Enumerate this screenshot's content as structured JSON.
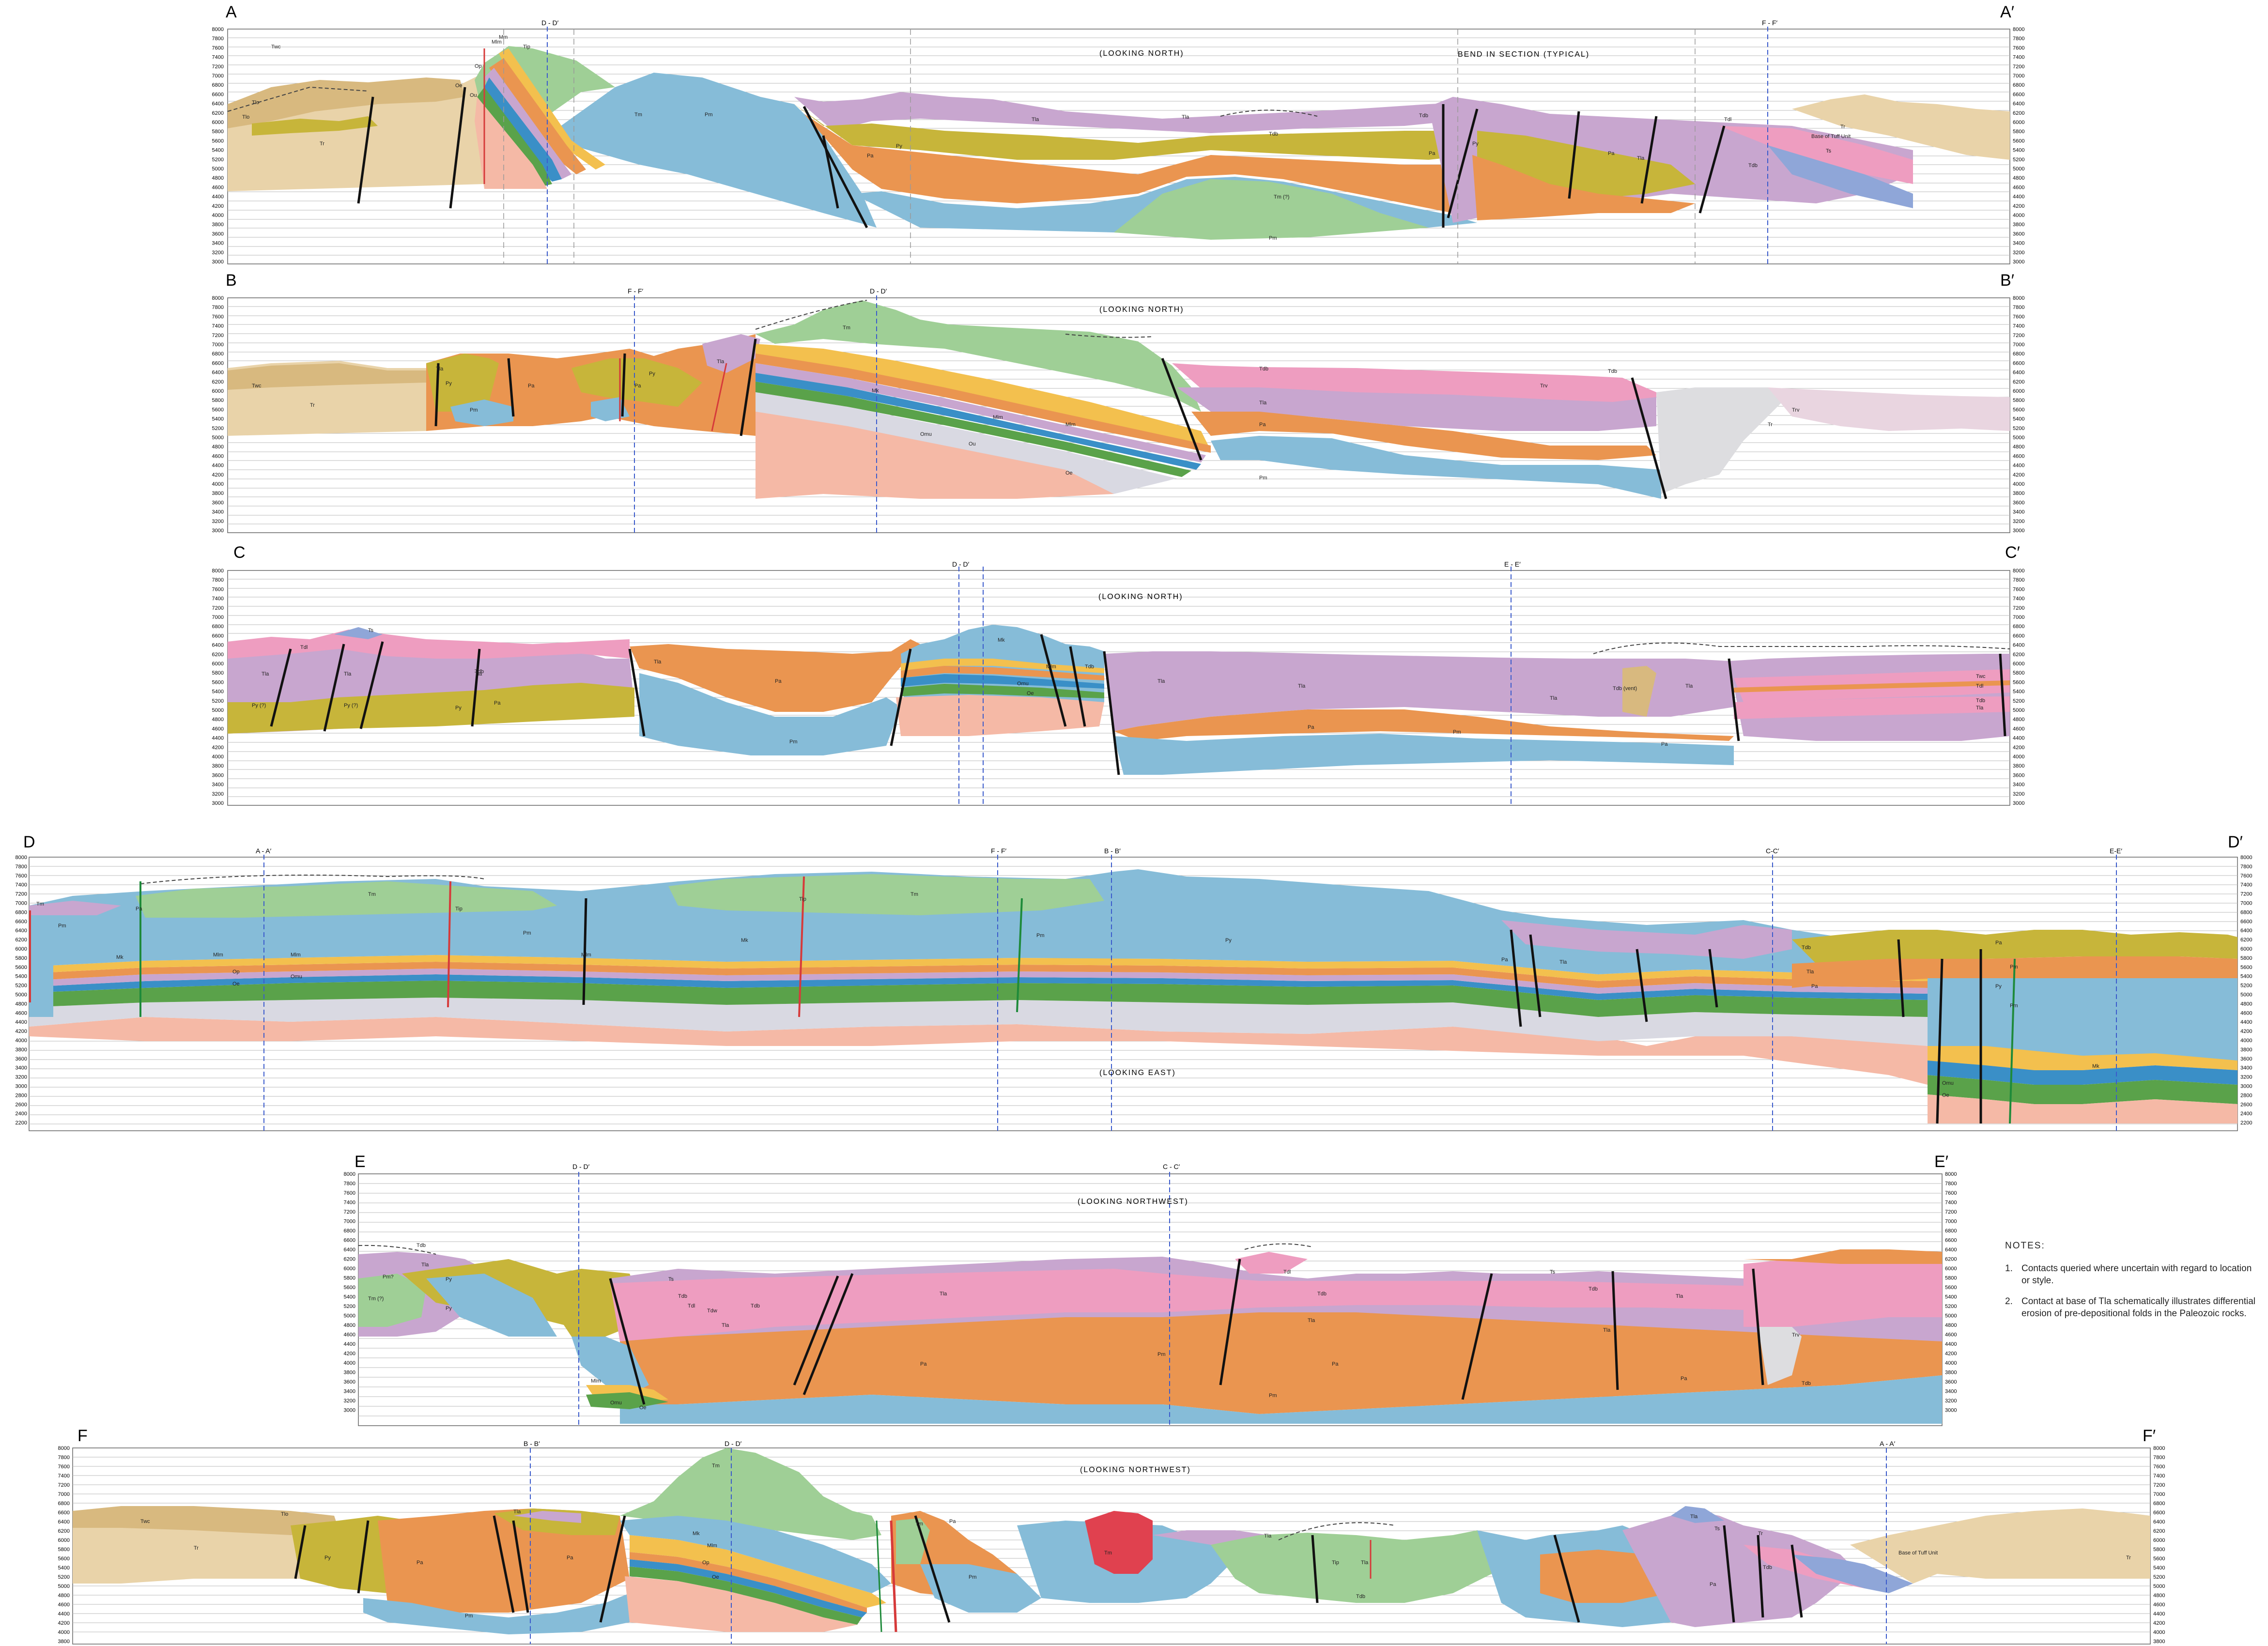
{
  "sections": [
    {
      "id": "A",
      "start": "A",
      "end": "A′",
      "look": "(LOOKING NORTH)",
      "callout": "BEND IN SECTION (TYPICAL)",
      "ticks": [
        "8000",
        "7800",
        "7600",
        "7400",
        "7200",
        "7000",
        "6800",
        "6600",
        "6400",
        "6200",
        "6000",
        "5800",
        "5600",
        "5400",
        "5200",
        "5000",
        "4800",
        "4600",
        "4400",
        "4200",
        "4000",
        "3800",
        "3600",
        "3400",
        "3200",
        "3000"
      ],
      "refs": [
        "D - D′",
        "F - F′"
      ],
      "units": [
        "Twc",
        "Tlo",
        "Tlo",
        "Tr",
        "Tm",
        "Pm",
        "Pa",
        "Py",
        "Tla",
        "Tla",
        "Tdb",
        "Tdb",
        "Py",
        "Pa",
        "Pa",
        "Tla",
        "Tdb",
        "Tr",
        "Ts",
        "Tm (?)",
        "Pm",
        "Tdl",
        "Base of Tuff Unit",
        "Mm",
        "Mlm",
        "Op",
        "Ou",
        "Oe",
        "Tip"
      ]
    },
    {
      "id": "B",
      "start": "B",
      "end": "B′",
      "look": "(LOOKING NORTH)",
      "ticks": [
        "8000",
        "7800",
        "7600",
        "7400",
        "7200",
        "7000",
        "6800",
        "6600",
        "6400",
        "6200",
        "6000",
        "5800",
        "5600",
        "5400",
        "5200",
        "5000",
        "4800",
        "4600",
        "4400",
        "4200",
        "4000",
        "3800",
        "3600",
        "3400",
        "3200",
        "3000"
      ],
      "refs": [
        "F - F′",
        "D - D′"
      ],
      "units": [
        "Twc",
        "Tr",
        "Tla",
        "Py",
        "Pa",
        "Pm",
        "Pa",
        "Py",
        "Tla",
        "Tm",
        "Mk",
        "Mlm",
        "Mlm",
        "Omu",
        "Ou",
        "Oe",
        "Tdb",
        "Tla",
        "Pa",
        "Pm",
        "Trv",
        "Tdb",
        "Tr",
        "Trv"
      ]
    },
    {
      "id": "C",
      "start": "C",
      "end": "C′",
      "look": "(LOOKING NORTH)",
      "ticks": [
        "8000",
        "7800",
        "7600",
        "7400",
        "7200",
        "7000",
        "6800",
        "6600",
        "6400",
        "6200",
        "6000",
        "5800",
        "5600",
        "5400",
        "5200",
        "5000",
        "4800",
        "4600",
        "4400",
        "4200",
        "4000",
        "3800",
        "3600",
        "3400",
        "3200",
        "3000"
      ],
      "refs": [
        "D - D′",
        "E - E′"
      ],
      "units": [
        "Tdl",
        "Ts",
        "Tdb",
        "Tla",
        "Tla",
        "Tla",
        "Py (?)",
        "Py (?)",
        "Py",
        "Pa",
        "Tla",
        "Pa",
        "Pm",
        "Mk",
        "Mlm",
        "Omu",
        "Oe",
        "Tdb",
        "Tla",
        "Tla",
        "Pa",
        "Pm",
        "Tla",
        "Tdb (vent)",
        "Tla",
        "Pa",
        "Twc",
        "Tdl",
        "Tdb",
        "Tla"
      ]
    },
    {
      "id": "D",
      "start": "D",
      "end": "D′",
      "look": "(LOOKING EAST)",
      "ticks": [
        "8000",
        "7800",
        "7600",
        "7400",
        "7200",
        "7000",
        "6800",
        "6600",
        "6400",
        "6200",
        "6000",
        "5800",
        "5600",
        "5400",
        "5200",
        "5000",
        "4800",
        "4600",
        "4400",
        "4200",
        "4000",
        "3800",
        "3600",
        "3400",
        "3200",
        "3000",
        "2800",
        "2600",
        "2400",
        "2200"
      ],
      "refs": [
        "A - A′",
        "F - F′",
        "B - B′",
        "C-C′",
        "E-E′"
      ],
      "units": [
        "Tm",
        "Pm",
        "Pa",
        "Mk",
        "Mlm",
        "Mlm",
        "Op",
        "Omu",
        "Oe",
        "Tip",
        "Tm",
        "Pm",
        "Tip",
        "Tm",
        "Mk",
        "Mlm",
        "Pm",
        "Py",
        "Pa",
        "Tla",
        "Tdb",
        "Pa",
        "Pm",
        "Py",
        "Tla",
        "Pa",
        "Pm",
        "Mk",
        "Omu",
        "Oe"
      ]
    },
    {
      "id": "E",
      "start": "E",
      "end": "E′",
      "look": "(LOOKING NORTHWEST)",
      "ticks": [
        "8000",
        "7800",
        "7600",
        "7400",
        "7200",
        "7000",
        "6800",
        "6600",
        "6400",
        "6200",
        "6000",
        "5800",
        "5600",
        "5400",
        "5200",
        "5000",
        "4800",
        "4600",
        "4400",
        "4200",
        "4000",
        "3800",
        "3600",
        "3400",
        "3200",
        "3000"
      ],
      "refs": [
        "D - D′",
        "C - C′"
      ],
      "units": [
        "Tdb",
        "Tla",
        "Pm?",
        "Tm (?)",
        "Py",
        "Py",
        "Ts",
        "Tdb",
        "Tdl",
        "Tdw",
        "Tla",
        "Tdb",
        "Tla",
        "Pa",
        "Pm",
        "Tdl",
        "Tdb",
        "Tla",
        "Pa",
        "Pm",
        "Ts",
        "Tdb",
        "Tla",
        "Trv",
        "Tla",
        "Pa",
        "Tdb",
        "Mlm",
        "Omu",
        "Oe"
      ]
    },
    {
      "id": "F",
      "start": "F",
      "end": "F′",
      "look": "(LOOKING NORTHWEST)",
      "ticks": [
        "8000",
        "7800",
        "7600",
        "7400",
        "7200",
        "7000",
        "6800",
        "6600",
        "6400",
        "6200",
        "6000",
        "5800",
        "5600",
        "5400",
        "5200",
        "5000",
        "4800",
        "4600",
        "4400",
        "4200",
        "4000",
        "3800"
      ],
      "refs": [
        "B - B′",
        "D - D′",
        "A - A′"
      ],
      "units": [
        "Twc",
        "Tlo",
        "Tr",
        "Py",
        "Pa",
        "Tla",
        "Pa",
        "Pm",
        "Tm",
        "Mk",
        "Mlm",
        "Op",
        "Oe",
        "Pa",
        "Pm",
        "Tm",
        "Tm",
        "Tip",
        "Tla",
        "Tdb",
        "Tla",
        "Pa",
        "Ts",
        "Tla",
        "Tdb",
        "Tr",
        "Base of Tuff Unit",
        "Tr"
      ]
    }
  ],
  "notes": {
    "header": "NOTES:",
    "items": [
      {
        "num": "1.",
        "text": "Contacts queried where uncertain with regard to location or style."
      },
      {
        "num": "2.",
        "text": "Contact at base of Tla schematically illustrates differential erosion of pre-depositional folds in the Paleozoic rocks."
      }
    ]
  },
  "colors": {
    "Tr": "#e9d3a9",
    "Twc": "#d8b97f",
    "Tm": "#9fcf96",
    "Pm": "#86bcd8",
    "Pa": "#ea9550",
    "Py": "#c7b53a",
    "Tla": "#c8a6cf",
    "Tdb": "#ee9dc0",
    "Ts": "#8fa6d8",
    "Trv": "#e9d5e0",
    "Pz": "#f5b9a6",
    "Tvent": "#d8d8e0",
    "Tip": "#e23a4a"
  }
}
